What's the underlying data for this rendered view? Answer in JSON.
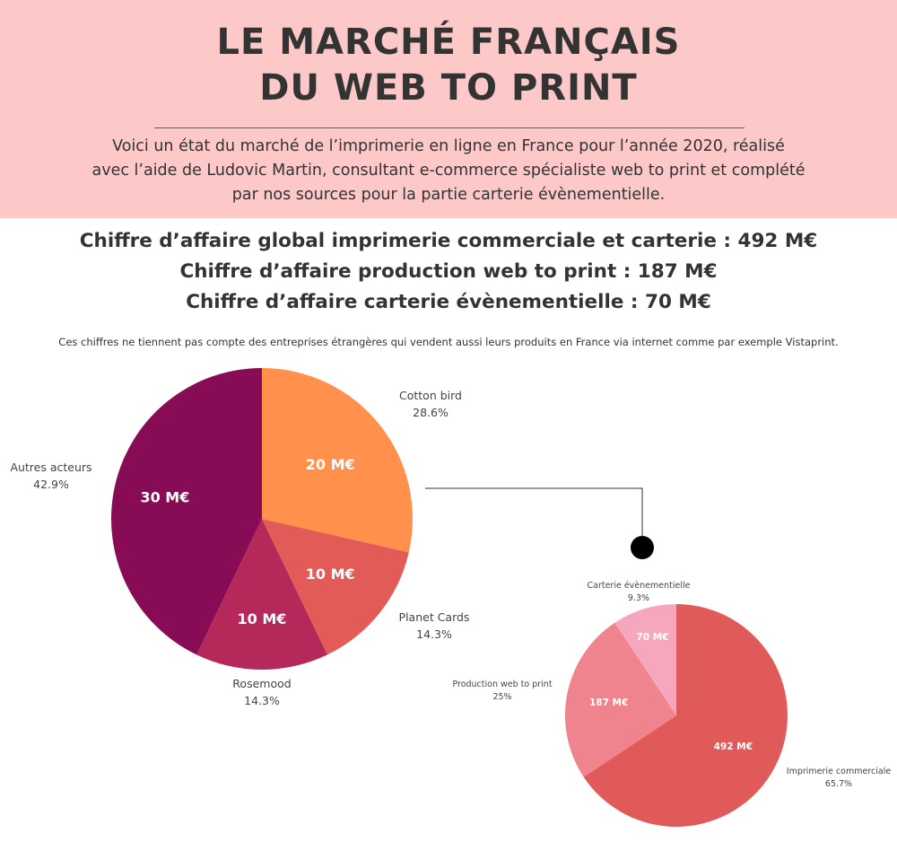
{
  "header": {
    "title_line1": "LE MARCHÉ FRANÇAIS",
    "title_line2": "DU WEB TO PRINT",
    "intro_line1": "Voici un état du marché de l’imprimerie en ligne en France pour l’année 2020, réalisé",
    "intro_line2": "avec l’aide de Ludovic Martin, consultant e-commerce spécialiste web to print et complété",
    "intro_line3": "par nos sources pour la partie carterie évènementielle.",
    "background": "#fcc8c8"
  },
  "headlines": {
    "line1": "Chiffre d’affaire global imprimerie commerciale et carterie : 492 M€",
    "line2": "Chiffre d’affaire production web to print : 187 M€",
    "line3": "Chiffre d’affaire carterie évènementielle : 70 M€"
  },
  "note": "Ces chiffres ne tiennent pas compte des entreprises étrangères qui vendent aussi leurs produits en France via internet comme par exemple Vistaprint.",
  "chart_data": [
    {
      "type": "pie",
      "title": "",
      "slices": [
        {
          "name": "Cotton bird",
          "value": 20,
          "percent": "28.6%",
          "value_label": "20 M€",
          "color": "#ff914d"
        },
        {
          "name": "Planet Cards",
          "value": 10,
          "percent": "14.3%",
          "value_label": "10 M€",
          "color": "#e25b57"
        },
        {
          "name": "Rosemood",
          "value": 10,
          "percent": "14.3%",
          "value_label": "10 M€",
          "color": "#b5285a"
        },
        {
          "name": "Autres acteurs",
          "value": 30,
          "percent": "42.9%",
          "value_label": "30 M€",
          "color": "#880b55"
        }
      ]
    },
    {
      "type": "pie",
      "title": "",
      "slices": [
        {
          "name": "Imprimerie commerciale",
          "value": 492,
          "percent": "65.7%",
          "value_label": "492 M€",
          "color": "#e05a5a"
        },
        {
          "name": "Production web to print",
          "value": 187,
          "percent": "25%",
          "value_label": "187 M€",
          "color": "#f0848e"
        },
        {
          "name": "Carterie évènementielle",
          "value": 70,
          "percent": "9.3%",
          "value_label": "70 M€",
          "color": "#f6a7bd"
        }
      ]
    }
  ]
}
